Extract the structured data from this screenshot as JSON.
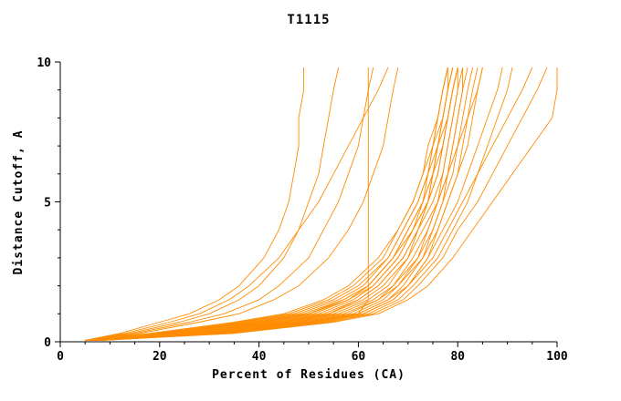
{
  "chart_data": {
    "type": "line",
    "title": "T1115",
    "xlabel": "Percent of Residues (CA)",
    "ylabel": "Distance Cutoff, A",
    "xlim": [
      0,
      100
    ],
    "ylim": [
      0,
      10
    ],
    "x_major_ticks": [
      0,
      20,
      40,
      60,
      80,
      100
    ],
    "x_minor_step": 5,
    "y_major_ticks": [
      0,
      5,
      10
    ],
    "y_minor_step": 1,
    "line_color": "#FF8C00",
    "axis_color": "#000000",
    "background": "#FFFFFF",
    "legend": "none",
    "grid": false,
    "cutoffs": [
      0.05,
      0.3,
      0.7,
      1.0,
      1.5,
      2.0,
      3.0,
      4.0,
      5.0,
      6.0,
      7.0,
      8.0,
      9.0,
      9.8
    ],
    "curves": [
      [
        6,
        25,
        45,
        55,
        62,
        66,
        70,
        72,
        74,
        75,
        76,
        77,
        78,
        79
      ],
      [
        6,
        28,
        48,
        58,
        64,
        68,
        72,
        74,
        76,
        77,
        78,
        79,
        80,
        80
      ],
      [
        7,
        30,
        50,
        60,
        66,
        69,
        73,
        75,
        77,
        78,
        79,
        80,
        81,
        81
      ],
      [
        6,
        27,
        47,
        57,
        64,
        67,
        71,
        74,
        76,
        78,
        79,
        80,
        81,
        82
      ],
      [
        7,
        26,
        46,
        56,
        63,
        67,
        72,
        75,
        77,
        79,
        80,
        81,
        82,
        83
      ],
      [
        8,
        32,
        52,
        61,
        67,
        70,
        74,
        76,
        78,
        80,
        81,
        82,
        83,
        84
      ],
      [
        7,
        29,
        49,
        59,
        65,
        68,
        73,
        76,
        78,
        80,
        82,
        83,
        84,
        85
      ],
      [
        6,
        24,
        44,
        54,
        61,
        65,
        70,
        73,
        76,
        78,
        80,
        82,
        84,
        85
      ],
      [
        5,
        20,
        38,
        48,
        56,
        61,
        66,
        69,
        72,
        74,
        75,
        76,
        77,
        78
      ],
      [
        5,
        22,
        40,
        50,
        58,
        62,
        67,
        70,
        73,
        74,
        76,
        77,
        78,
        79
      ],
      [
        6,
        21,
        39,
        49,
        57,
        62,
        67,
        71,
        73,
        75,
        76,
        77,
        78,
        78
      ],
      [
        6,
        23,
        42,
        52,
        59,
        63,
        68,
        71,
        74,
        76,
        77,
        78,
        79,
        80
      ],
      [
        5,
        19,
        36,
        46,
        54,
        59,
        65,
        68,
        71,
        73,
        75,
        76,
        77,
        78
      ],
      [
        6,
        22,
        41,
        51,
        58,
        63,
        68,
        71,
        74,
        75,
        77,
        78,
        79,
        80
      ],
      [
        5,
        18,
        35,
        45,
        53,
        58,
        64,
        68,
        71,
        73,
        74,
        76,
        77,
        78
      ],
      [
        6,
        24,
        43,
        53,
        60,
        64,
        69,
        72,
        74,
        76,
        77,
        78,
        79,
        80
      ],
      [
        5,
        20,
        37,
        47,
        55,
        60,
        66,
        69,
        72,
        74,
        75,
        77,
        78,
        79
      ],
      [
        6,
        21,
        40,
        50,
        57,
        62,
        67,
        70,
        73,
        75,
        76,
        78,
        79,
        80
      ],
      [
        5,
        12,
        20,
        26,
        32,
        36,
        41,
        44,
        46,
        47,
        48,
        48,
        49,
        49
      ],
      [
        5,
        14,
        24,
        30,
        36,
        40,
        45,
        48,
        50,
        52,
        53,
        54,
        55,
        56
      ],
      [
        5,
        15,
        26,
        33,
        40,
        44,
        50,
        53,
        56,
        58,
        60,
        61,
        62,
        63
      ],
      [
        6,
        16,
        28,
        36,
        43,
        48,
        54,
        58,
        61,
        63,
        65,
        66,
        67,
        68
      ],
      [
        5,
        13,
        22,
        28,
        34,
        38,
        44,
        48,
        52,
        55,
        58,
        61,
        64,
        66
      ],
      [
        7,
        30,
        50,
        60,
        66,
        70,
        74,
        77,
        80,
        82,
        84,
        86,
        88,
        89
      ],
      [
        8,
        33,
        53,
        62,
        68,
        71,
        76,
        79,
        82,
        84,
        86,
        88,
        90,
        91
      ],
      [
        7,
        31,
        51,
        61,
        67,
        70,
        75,
        78,
        81,
        84,
        87,
        90,
        93,
        95
      ],
      [
        8,
        34,
        54,
        63,
        69,
        72,
        77,
        80,
        84,
        87,
        90,
        93,
        96,
        98
      ],
      [
        8,
        35,
        55,
        64,
        70,
        74,
        79,
        83,
        87,
        91,
        95,
        99,
        100,
        100
      ],
      [
        8,
        30,
        50,
        60,
        62,
        62,
        62,
        62,
        62,
        62,
        62,
        62,
        62,
        62
      ],
      [
        6,
        26,
        45,
        54,
        60,
        64,
        69,
        72,
        75,
        77,
        78,
        79,
        80,
        81
      ]
    ]
  }
}
